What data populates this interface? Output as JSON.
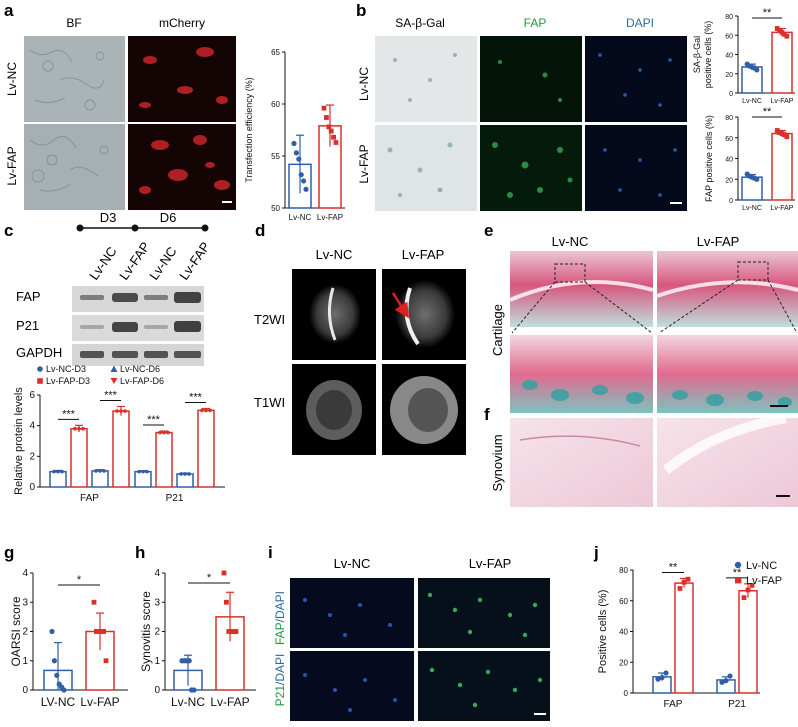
{
  "panel_letters": [
    "a",
    "b",
    "c",
    "d",
    "e",
    "f",
    "g",
    "h",
    "i",
    "j"
  ],
  "panel_a": {
    "col_titles": [
      "BF",
      "mCherry"
    ],
    "row_labels": [
      "Lv-NC",
      "Lv-FAP"
    ]
  },
  "panel_b": {
    "col_titles": [
      "SA-β-Gal",
      "FAP",
      "DAPI"
    ],
    "row_labels": [
      "Lv-NC",
      "Lv-FAP"
    ]
  },
  "panel_c": {
    "time_labels": [
      "D3",
      "D6"
    ],
    "lane_labels": [
      "Lv-NC",
      "Lv-FAP",
      "Lv-NC",
      "Lv-FAP"
    ],
    "blot_labels": [
      "FAP",
      "P21",
      "GAPDH"
    ]
  },
  "panel_d": {
    "col_titles": [
      "Lv-NC",
      "Lv-FAP"
    ],
    "row_labels": [
      "T2WI",
      "T1WI"
    ]
  },
  "panel_e": {
    "col_titles": [
      "Lv-NC",
      "Lv-FAP"
    ],
    "row_label": "Cartilage"
  },
  "panel_f": {
    "row_label": "Synovium"
  },
  "panel_i": {
    "col_titles": [
      "Lv-NC",
      "Lv-FAP"
    ],
    "row_labels": [
      {
        "pre": "FAP",
        "post": "/DAPI"
      },
      {
        "pre": "P21",
        "post": "/DAPI"
      }
    ]
  },
  "colors": {
    "nc": "#2e5fa8",
    "fap": "#d9302c",
    "green": "#1e9a3c",
    "dapi": "#2c6aa0"
  },
  "chart_data": [
    {
      "id": "a",
      "type": "bar",
      "categories": [
        "Lv-NC",
        "Lv-FAP"
      ],
      "values": [
        54.2,
        57.9
      ],
      "errors": [
        2.8,
        2.0
      ],
      "points": [
        [
          56.2,
          55.3,
          54.7,
          53.2,
          52.6,
          51.8
        ],
        [
          59.6,
          58.7,
          57.8,
          57.4,
          56.8,
          56.3
        ]
      ],
      "ylabel": "Transfection efficiency (%)",
      "ylim": [
        50,
        65
      ],
      "yticks": [
        50,
        55,
        60,
        65
      ],
      "significance": ""
    },
    {
      "id": "b_top",
      "type": "bar",
      "categories": [
        "Lv-NC",
        "Lv-FAP"
      ],
      "values": [
        27,
        63
      ],
      "errors": [
        3,
        4
      ],
      "points": [
        [
          30,
          28,
          27,
          26,
          24
        ],
        [
          67,
          65,
          63,
          61,
          59
        ]
      ],
      "ylabel_lines": [
        "SA-β-Gal",
        "positive cells (%)"
      ],
      "ylim": [
        0,
        80
      ],
      "yticks": [
        0,
        20,
        40,
        60,
        80
      ],
      "significance": "**"
    },
    {
      "id": "b_bottom",
      "type": "bar",
      "categories": [
        "Lv-NC",
        "Lv-FAP"
      ],
      "values": [
        22,
        64
      ],
      "errors": [
        2.5,
        3
      ],
      "points": [
        [
          25,
          23,
          22,
          21,
          20
        ],
        [
          67,
          65,
          64,
          63,
          61
        ]
      ],
      "ylabel": "FAP positive cells (%)",
      "ylim": [
        0,
        80
      ],
      "yticks": [
        0,
        20,
        40,
        60,
        80
      ],
      "significance": "**"
    },
    {
      "id": "c",
      "type": "bar",
      "categories": [
        "FAP",
        "P21"
      ],
      "series": [
        {
          "name": "Lv-NC-D3",
          "values": [
            1.0,
            1.0
          ],
          "errors": [
            0.08,
            0.06
          ]
        },
        {
          "name": "Lv-FAP-D3",
          "values": [
            3.8,
            3.55
          ],
          "errors": [
            0.22,
            0.1
          ]
        },
        {
          "name": "Lv-NC-D6",
          "values": [
            1.05,
            0.85
          ],
          "errors": [
            0.08,
            0.06
          ]
        },
        {
          "name": "Lv-FAP-D6",
          "values": [
            4.95,
            5.0
          ],
          "errors": [
            0.3,
            0.12
          ]
        }
      ],
      "ylabel": "Relative protein levels",
      "ylim": [
        0,
        6
      ],
      "yticks": [
        0,
        2,
        4,
        6
      ],
      "significance": [
        "***",
        "***",
        "***",
        "***"
      ]
    },
    {
      "id": "g",
      "type": "bar",
      "categories": [
        "LV-NC",
        "Lv-FAP"
      ],
      "values": [
        0.67,
        2.0
      ],
      "errors": [
        0.95,
        0.63
      ],
      "points": [
        [
          2.0,
          1.0,
          0.5,
          0.2,
          0.1,
          0.0
        ],
        [
          3.0,
          2.0,
          2.0,
          2.0,
          2.0,
          1.0
        ]
      ],
      "ylabel": "OARSI score",
      "ylim": [
        0,
        4
      ],
      "yticks": [
        0,
        1,
        2,
        3,
        4
      ],
      "significance": "*"
    },
    {
      "id": "h",
      "type": "bar",
      "categories": [
        "Lv-NC",
        "Lv-FAP"
      ],
      "values": [
        0.67,
        2.5
      ],
      "errors": [
        0.52,
        0.84
      ],
      "points": [
        [
          1.0,
          1.0,
          1.0,
          1.0,
          0.0,
          0.0
        ],
        [
          4.0,
          3.0,
          2.0,
          2.0,
          2.0,
          2.0
        ]
      ],
      "ylabel": "Synovitis score",
      "ylim": [
        0,
        4
      ],
      "yticks": [
        0,
        1,
        2,
        3,
        4
      ],
      "significance": "*"
    },
    {
      "id": "j",
      "type": "bar",
      "categories": [
        "FAP",
        "P21"
      ],
      "series": [
        {
          "name": "Lv-NC",
          "values": [
            10.5,
            8.5
          ],
          "errors": [
            2.5,
            2.0
          ],
          "points": [
            [
              9,
              10,
              13
            ],
            [
              7,
              8,
              11
            ]
          ]
        },
        {
          "name": "Lv-FAP",
          "values": [
            71.5,
            66.5
          ],
          "errors": [
            3.0,
            4.5
          ],
          "points": [
            [
              68,
              72,
              74
            ],
            [
              62,
              67,
              70
            ]
          ]
        }
      ],
      "ylabel": "Positive cells (%)",
      "ylim": [
        0,
        80
      ],
      "yticks": [
        0,
        20,
        40,
        60,
        80
      ],
      "significance": [
        "**",
        "**"
      ],
      "legend": "top-right"
    }
  ]
}
